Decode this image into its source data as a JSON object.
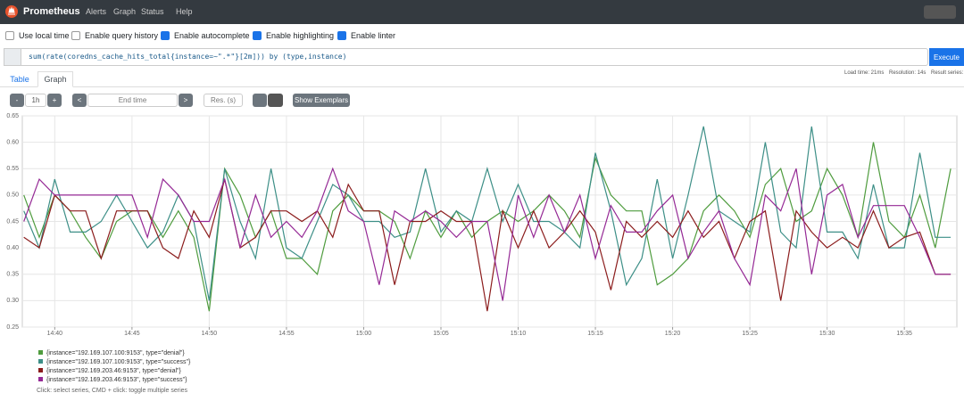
{
  "navbar": {
    "brand": "Prometheus",
    "links": [
      "Alerts",
      "Graph",
      "Status",
      "Help"
    ]
  },
  "options": [
    {
      "label": "Use local time",
      "checked": false
    },
    {
      "label": "Enable query history",
      "checked": false
    },
    {
      "label": "Enable autocomplete",
      "checked": true
    },
    {
      "label": "Enable highlighting",
      "checked": true
    },
    {
      "label": "Enable linter",
      "checked": true
    }
  ],
  "query": {
    "expression": "sum(rate(coredns_cache_hits_total{instance=~\".*\"}[2m])) by (type,instance)",
    "button": "Execute"
  },
  "stats": [
    "Load time: 21ms",
    "Resolution: 14s",
    "Result series:"
  ],
  "tabs": [
    {
      "label": "Table",
      "active": false
    },
    {
      "label": "Graph",
      "active": true
    }
  ],
  "controls": {
    "range_minus": "-",
    "range": "1h",
    "range_plus": "+",
    "prev": "<",
    "end_time": "End time",
    "next": ">",
    "resolution": "Res. (s)",
    "exemplars": "Show Exemplars"
  },
  "chart_data": {
    "type": "line",
    "grid": true,
    "x": [
      878,
      879,
      880,
      881,
      882,
      883,
      884,
      885,
      886,
      887,
      888,
      889,
      890,
      891,
      892,
      893,
      894,
      895,
      896,
      897,
      898,
      899,
      900,
      901,
      902,
      903,
      904,
      905,
      906,
      907,
      908,
      909,
      910,
      911,
      912,
      913,
      914,
      915,
      916,
      917,
      918,
      919,
      920,
      921,
      922,
      923,
      924,
      925,
      926,
      927,
      928,
      929,
      930,
      931,
      932,
      933,
      934,
      935,
      936,
      937,
      938
    ],
    "xlim": [
      877.9,
      938.4
    ],
    "xticks": [
      {
        "value": 880,
        "label": "14:40"
      },
      {
        "value": 885,
        "label": "14:45"
      },
      {
        "value": 890,
        "label": "14:50"
      },
      {
        "value": 895,
        "label": "14:55"
      },
      {
        "value": 900,
        "label": "15:00"
      },
      {
        "value": 905,
        "label": "15:05"
      },
      {
        "value": 910,
        "label": "15:10"
      },
      {
        "value": 915,
        "label": "15:15"
      },
      {
        "value": 920,
        "label": "15:20"
      },
      {
        "value": 925,
        "label": "15:25"
      },
      {
        "value": 930,
        "label": "15:30"
      },
      {
        "value": 935,
        "label": "15:35"
      }
    ],
    "ylim": [
      0.25,
      0.65
    ],
    "yticks": [
      0.25,
      {
        "value": 0.3,
        "label": "0.30"
      },
      0.35,
      {
        "value": 0.4,
        "label": "0.40"
      },
      0.45,
      {
        "value": 0.5,
        "label": "0.50"
      },
      0.55,
      {
        "value": 0.6,
        "label": "0.60"
      },
      0.65
    ],
    "series": [
      {
        "name": "{instance=\"192.169.107.100:9153\", type=\"denial\"}",
        "color": "#4f9c3e",
        "values": [
          0.5,
          0.42,
          0.5,
          0.47,
          0.42,
          0.38,
          0.45,
          0.47,
          0.47,
          0.42,
          0.47,
          0.42,
          0.28,
          0.55,
          0.5,
          0.42,
          0.47,
          0.38,
          0.38,
          0.35,
          0.47,
          0.5,
          0.47,
          0.47,
          0.45,
          0.38,
          0.47,
          0.42,
          0.47,
          0.42,
          0.45,
          0.47,
          0.45,
          0.47,
          0.5,
          0.47,
          0.42,
          0.57,
          0.5,
          0.47,
          0.47,
          0.33,
          0.35,
          0.38,
          0.47,
          0.5,
          0.47,
          0.42,
          0.52,
          0.55,
          0.45,
          0.47,
          0.55,
          0.5,
          0.42,
          0.6,
          0.45,
          0.42,
          0.5,
          0.4,
          0.55
        ]
      },
      {
        "name": "{instance=\"192.169.107.100:9153\", type=\"success\"}",
        "color": "#3d8f87",
        "values": [
          0.47,
          0.4,
          0.53,
          0.43,
          0.43,
          0.45,
          0.5,
          0.45,
          0.4,
          0.43,
          0.5,
          0.45,
          0.3,
          0.55,
          0.45,
          0.38,
          0.55,
          0.4,
          0.38,
          0.45,
          0.52,
          0.5,
          0.45,
          0.45,
          0.42,
          0.43,
          0.55,
          0.43,
          0.47,
          0.45,
          0.55,
          0.45,
          0.52,
          0.45,
          0.45,
          0.43,
          0.4,
          0.58,
          0.47,
          0.33,
          0.38,
          0.53,
          0.38,
          0.5,
          0.63,
          0.47,
          0.45,
          0.43,
          0.6,
          0.43,
          0.4,
          0.63,
          0.43,
          0.43,
          0.38,
          0.52,
          0.4,
          0.4,
          0.58,
          0.42,
          0.42
        ]
      },
      {
        "name": "{instance=\"192.169.203.46:9153\", type=\"denial\"}",
        "color": "#8b1c1c",
        "values": [
          0.42,
          0.4,
          0.5,
          0.47,
          0.47,
          0.38,
          0.47,
          0.47,
          0.47,
          0.4,
          0.38,
          0.47,
          0.42,
          0.53,
          0.4,
          0.42,
          0.47,
          0.47,
          0.45,
          0.47,
          0.42,
          0.52,
          0.47,
          0.47,
          0.33,
          0.45,
          0.45,
          0.47,
          0.45,
          0.45,
          0.28,
          0.47,
          0.4,
          0.47,
          0.4,
          0.43,
          0.47,
          0.43,
          0.32,
          0.45,
          0.42,
          0.45,
          0.42,
          0.47,
          0.42,
          0.45,
          0.38,
          0.45,
          0.47,
          0.3,
          0.47,
          0.43,
          0.4,
          0.42,
          0.4,
          0.47,
          0.4,
          0.42,
          0.43,
          0.35,
          0.35
        ]
      },
      {
        "name": "{instance=\"192.169.203.46:9153\", type=\"success\"}",
        "color": "#952995",
        "values": [
          0.45,
          0.53,
          0.5,
          0.5,
          0.5,
          0.5,
          0.5,
          0.5,
          0.42,
          0.53,
          0.5,
          0.45,
          0.45,
          0.53,
          0.4,
          0.5,
          0.42,
          0.45,
          0.42,
          0.47,
          0.55,
          0.47,
          0.45,
          0.33,
          0.47,
          0.45,
          0.47,
          0.45,
          0.42,
          0.45,
          0.45,
          0.3,
          0.5,
          0.42,
          0.5,
          0.43,
          0.5,
          0.38,
          0.48,
          0.43,
          0.43,
          0.47,
          0.5,
          0.38,
          0.43,
          0.47,
          0.38,
          0.33,
          0.5,
          0.47,
          0.55,
          0.35,
          0.5,
          0.52,
          0.42,
          0.48,
          0.48,
          0.48,
          0.42,
          0.35,
          0.35
        ]
      }
    ],
    "hint": "Click: select series, CMD + click: toggle multiple series"
  }
}
